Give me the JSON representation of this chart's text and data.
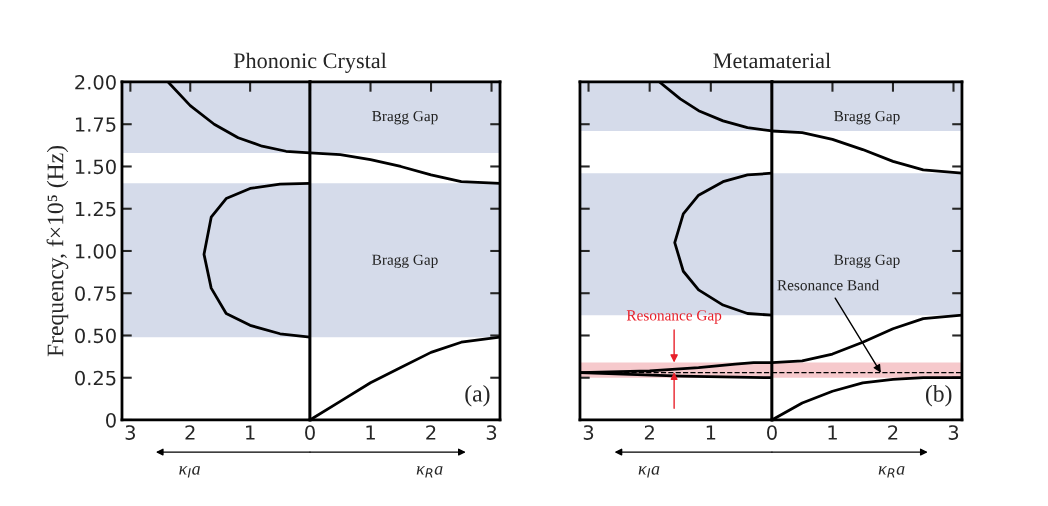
{
  "chart_data": [
    {
      "type": "line",
      "title": "Phononic Crystal",
      "ylabel": "Frequency, f×10⁵ (Hz)",
      "xlabel": "κ$_{I}$a",
      "xlim": [
        3.14,
        0
      ],
      "ylim": [
        0,
        2.0
      ],
      "xticks": [
        3,
        2,
        1
      ],
      "yticks": [
        {
          "value": 0,
          "label": "0"
        },
        {
          "value": 0.25,
          "label": "0.25"
        },
        {
          "value": 0.5,
          "label": "0.50"
        },
        {
          "value": 0.75,
          "label": "0.75"
        },
        {
          "value": 1.0,
          "label": "1.00"
        },
        {
          "value": 1.25,
          "label": "1.25"
        },
        {
          "value": 1.5,
          "label": "1.50"
        },
        {
          "value": 1.75,
          "label": "1.75"
        },
        {
          "value": 2.0,
          "label": "2.00"
        }
      ],
      "grid": false,
      "series": [
        {
          "color": "#000000",
          "x": [
            2.37,
            2.0,
            1.6,
            1.2,
            0.8,
            0.4,
            0
          ],
          "values": [
            2.0,
            1.86,
            1.75,
            1.67,
            1.62,
            1.59,
            1.58
          ]
        },
        {
          "color": "#000000",
          "x": [
            0,
            0.5,
            1.0,
            1.4,
            1.65,
            1.77,
            1.65,
            1.4,
            1.0,
            0.5,
            0
          ],
          "values": [
            1.4,
            1.395,
            1.37,
            1.31,
            1.2,
            0.98,
            0.78,
            0.63,
            0.56,
            0.51,
            0.49
          ]
        }
      ],
      "bands": [
        {
          "axis": "y",
          "from": 1.58,
          "to": 2.0,
          "color": "#d5dbea"
        },
        {
          "axis": "y",
          "from": 0.49,
          "to": 1.4,
          "color": "#d5dbea"
        }
      ]
    },
    {
      "type": "line",
      "xlabel": "κ$_{R}$a",
      "xlim": [
        0,
        3.14
      ],
      "ylim": [
        0,
        2.0
      ],
      "xticks": [
        0,
        1,
        2,
        3
      ],
      "yticks": [
        0,
        0.25,
        0.5,
        0.75,
        1.0,
        1.25,
        1.5,
        1.75,
        2.0
      ],
      "tick_labels": "x",
      "grid": false,
      "series": [
        {
          "color": "#000000",
          "x": [
            0,
            0.5,
            1.0,
            1.5,
            2.0,
            2.5,
            3.14
          ],
          "values": [
            1.58,
            1.57,
            1.54,
            1.5,
            1.45,
            1.41,
            1.4
          ]
        },
        {
          "color": "#000000",
          "x": [
            0,
            0.5,
            1.0,
            1.5,
            2.0,
            2.5,
            3.14
          ],
          "values": [
            0,
            0.11,
            0.22,
            0.31,
            0.4,
            0.46,
            0.49
          ]
        }
      ],
      "bands": [
        {
          "axis": "y",
          "from": 1.58,
          "to": 2.0,
          "color": "#d5dbea"
        },
        {
          "axis": "y",
          "from": 0.49,
          "to": 1.4,
          "color": "#d5dbea"
        }
      ],
      "annotations": [
        "Bragg Gap",
        "Bragg Gap",
        "(a)"
      ]
    },
    {
      "type": "line",
      "title": "Metamaterial",
      "xlabel": "κ$_{I}$a",
      "xlim": [
        3.14,
        0
      ],
      "ylim": [
        0,
        2.0
      ],
      "xticks": [
        3,
        2,
        1
      ],
      "yticks": [
        0,
        0.25,
        0.5,
        0.75,
        1.0,
        1.25,
        1.5,
        1.75,
        2.0
      ],
      "tick_labels": "x",
      "grid": false,
      "series": [
        {
          "color": "#000000",
          "x": [
            1.84,
            1.5,
            1.2,
            0.8,
            0.4,
            0
          ],
          "values": [
            2.0,
            1.9,
            1.83,
            1.77,
            1.73,
            1.71
          ]
        },
        {
          "color": "#000000",
          "x": [
            0,
            0.4,
            0.8,
            1.2,
            1.45,
            1.59,
            1.45,
            1.2,
            0.8,
            0.4,
            0
          ],
          "values": [
            1.46,
            1.45,
            1.41,
            1.33,
            1.22,
            1.05,
            0.88,
            0.77,
            0.68,
            0.63,
            0.62
          ]
        },
        {
          "color": "#000000",
          "x": [
            0,
            0.3,
            0.6,
            1.2,
            2.0,
            3.14
          ],
          "values": [
            0.34,
            0.34,
            0.33,
            0.31,
            0.29,
            0.28
          ]
        },
        {
          "color": "#000000",
          "x": [
            0,
            1.5,
            3.14
          ],
          "values": [
            0.25,
            0.26,
            0.28
          ]
        }
      ],
      "bands": [
        {
          "axis": "y",
          "from": 1.71,
          "to": 2.0,
          "color": "#d5dbea"
        },
        {
          "axis": "y",
          "from": 0.62,
          "to": 1.46,
          "color": "#d5dbea"
        },
        {
          "axis": "y",
          "from": 0.25,
          "to": 0.34,
          "color": "#f6c9cc"
        }
      ],
      "ref_lines": [
        {
          "axis": "y",
          "value": 0.28,
          "color": "#000000",
          "line_style": "dashed"
        }
      ],
      "annotations": [
        {
          "text": "Resonance Gap",
          "x": 1.6,
          "y": 0.34
        }
      ]
    },
    {
      "type": "line",
      "xlabel": "κ$_{R}$a",
      "xlim": [
        0,
        3.14
      ],
      "ylim": [
        0,
        2.0
      ],
      "xticks": [
        0,
        1,
        2,
        3
      ],
      "yticks": [
        0,
        0.25,
        0.5,
        0.75,
        1.0,
        1.25,
        1.5,
        1.75,
        2.0
      ],
      "tick_labels": "x",
      "grid": false,
      "series": [
        {
          "color": "#000000",
          "x": [
            0,
            0.5,
            1.0,
            1.5,
            2.0,
            2.5,
            3.14
          ],
          "values": [
            1.71,
            1.7,
            1.66,
            1.6,
            1.53,
            1.48,
            1.46
          ]
        },
        {
          "color": "#000000",
          "x": [
            0,
            0.5,
            1.0,
            1.5,
            2.0,
            2.5,
            3.14
          ],
          "values": [
            0.34,
            0.35,
            0.39,
            0.46,
            0.54,
            0.6,
            0.62
          ]
        },
        {
          "color": "#000000",
          "x": [
            0,
            0.5,
            1.0,
            1.5,
            2.0,
            2.5,
            3.14
          ],
          "values": [
            0,
            0.1,
            0.17,
            0.22,
            0.24,
            0.25,
            0.25
          ]
        }
      ],
      "bands": [
        {
          "axis": "y",
          "from": 1.71,
          "to": 2.0,
          "color": "#d5dbea"
        },
        {
          "axis": "y",
          "from": 0.62,
          "to": 1.46,
          "color": "#d5dbea"
        },
        {
          "axis": "y",
          "from": 0.25,
          "to": 0.34,
          "color": "#f6c9cc"
        }
      ],
      "ref_lines": [
        {
          "axis": "y",
          "value": 0.28,
          "color": "#000000",
          "line_style": "dashed"
        }
      ],
      "annotations": [
        "Bragg Gap",
        "Bragg Gap",
        {
          "text": "Resonance Band",
          "x": 1.8,
          "y": 0.28
        },
        "(b)"
      ]
    }
  ]
}
